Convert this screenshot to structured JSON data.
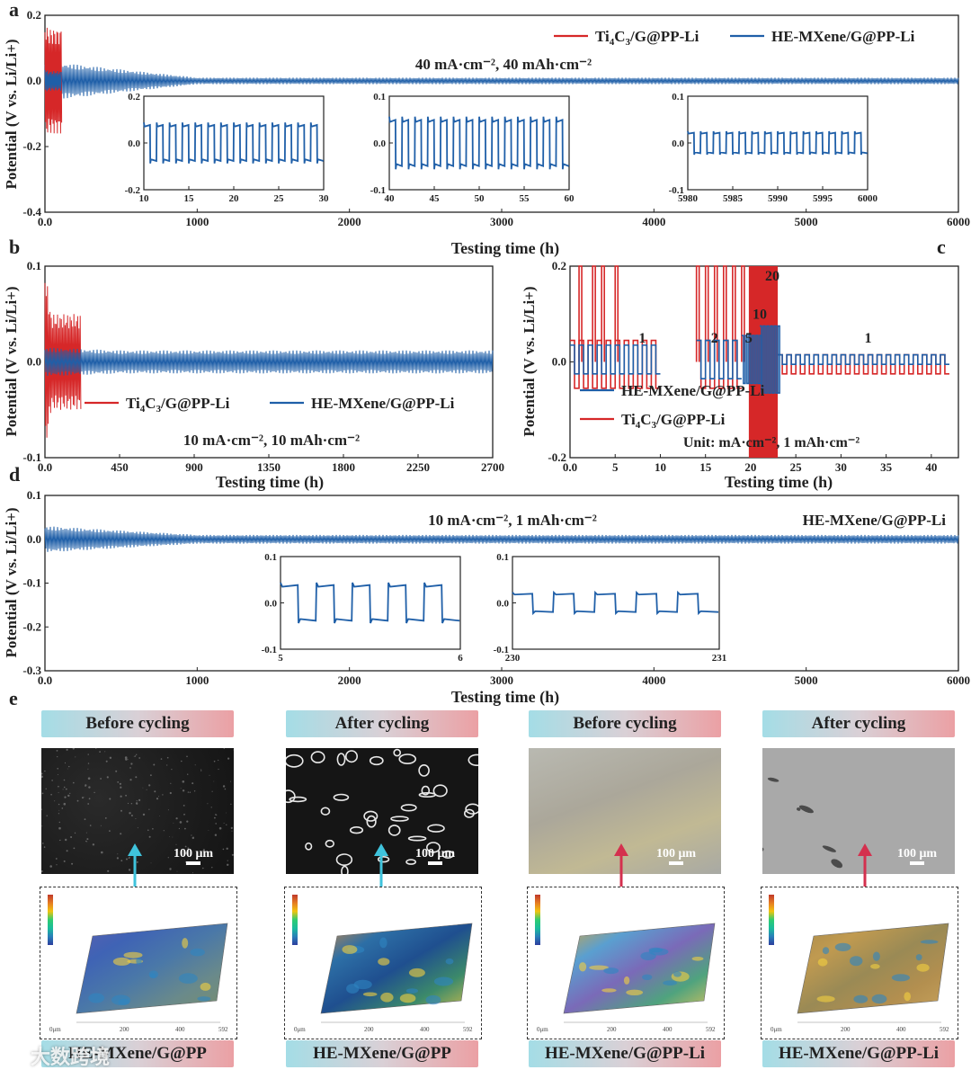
{
  "colors": {
    "ti": "#d62728",
    "he": "#1f5fa8",
    "axis": "#222222"
  },
  "legend": {
    "ti": "Ti4C3/G@PP-Li",
    "he": "HE-MXene/G@PP-Li"
  },
  "panels": {
    "a": "a",
    "b": "b",
    "c": "c",
    "d": "d",
    "e": "e"
  },
  "chart_data": [
    {
      "id": "a",
      "type": "line",
      "ylabel": "Potential (V vs. Li/Li+)",
      "xlabel": "Testing time (h)",
      "xlim": [
        0,
        6000
      ],
      "ylim": [
        -0.4,
        0.2
      ],
      "xticks": [
        0,
        1000,
        2000,
        3000,
        4000,
        5000,
        6000
      ],
      "yticks": [
        -0.4,
        -0.2,
        0.0,
        0.2
      ],
      "annotation": "40 mA·cm⁻², 40 mAh·cm⁻²",
      "series": [
        {
          "name": "Ti4C3/G@PP-Li",
          "x_range": [
            0,
            110
          ],
          "amplitude": [
            0.18,
            0.16
          ]
        },
        {
          "name": "HE-MXene/G@PP-Li",
          "x_range": [
            0,
            6000
          ],
          "amplitude": [
            0.06,
            0.01
          ]
        }
      ],
      "insets": [
        {
          "xlim": [
            10,
            30
          ],
          "ylim": [
            -0.2,
            0.2
          ],
          "xticks": [
            10,
            15,
            20,
            25,
            30
          ],
          "yticks": [
            -0.2,
            0.0,
            0.2
          ],
          "amp": 0.07,
          "cycles": 14
        },
        {
          "xlim": [
            40,
            60
          ],
          "ylim": [
            -0.1,
            0.1
          ],
          "xticks": [
            40,
            45,
            50,
            55,
            60
          ],
          "yticks": [
            -0.1,
            0.0,
            0.1
          ],
          "amp": 0.045,
          "cycles": 14
        },
        {
          "xlim": [
            5980,
            6000
          ],
          "ylim": [
            -0.1,
            0.1
          ],
          "xticks": [
            5980,
            5985,
            5990,
            5995,
            6000
          ],
          "yticks": [
            -0.1,
            0.0,
            0.1
          ],
          "amp": 0.02,
          "cycles": 14
        }
      ]
    },
    {
      "id": "b",
      "type": "line",
      "ylabel": "Potential (V vs. Li/Li+)",
      "xlabel": "Testing time (h)",
      "xlim": [
        0,
        2700
      ],
      "ylim": [
        -0.1,
        0.1
      ],
      "xticks": [
        0,
        450,
        900,
        1350,
        1800,
        2250,
        2700
      ],
      "yticks": [
        -0.1,
        0.0,
        0.1
      ],
      "annotation": "10 mA·cm⁻², 10 mAh·cm⁻²",
      "series": [
        {
          "name": "Ti4C3/G@PP-Li",
          "x_range": [
            0,
            220
          ],
          "amplitude": [
            0.1,
            0.05
          ]
        },
        {
          "name": "HE-MXene/G@PP-Li",
          "x_range": [
            0,
            2700
          ],
          "amplitude": [
            0.015,
            0.012
          ]
        }
      ]
    },
    {
      "id": "c",
      "type": "line",
      "ylabel": "Potential (V vs. Li/Li+)",
      "xlabel": "Testing time (h)",
      "xlim": [
        0,
        43
      ],
      "ylim": [
        -0.2,
        0.2
      ],
      "xticks": [
        0,
        5,
        10,
        15,
        20,
        25,
        30,
        35,
        40
      ],
      "yticks": [
        -0.2,
        0.0,
        0.2
      ],
      "annotation": "Unit: mA·cm⁻², 1 mAh·cm⁻²",
      "rate_labels": [
        {
          "t": "1",
          "x": 8
        },
        {
          "t": "2",
          "x": 16
        },
        {
          "t": "5",
          "x": 19.8
        },
        {
          "t": "10",
          "x": 21
        },
        {
          "t": "20",
          "x": 22.4
        },
        {
          "t": "1",
          "x": 33
        }
      ],
      "series": [
        {
          "name": "HE-MXene/G@PP-Li",
          "segments": [
            {
              "x": [
                0,
                10
              ],
              "amp": 0.03
            },
            {
              "x": [
                14,
                19
              ],
              "amp": 0.04
            },
            {
              "x": [
                19,
                21
              ],
              "amp": 0.05
            },
            {
              "x": [
                21,
                23
              ],
              "amp": 0.07
            },
            {
              "x": [
                23,
                42
              ],
              "amp": 0.01
            }
          ]
        },
        {
          "name": "Ti4C3/G@PP-Li",
          "segments": [
            {
              "x": [
                0,
                10
              ],
              "amp": 0.05,
              "spikes": [
                1,
                2.5,
                3.5,
                5
              ]
            },
            {
              "x": [
                14,
                19
              ],
              "amp": 0.05,
              "spikes": [
                14,
                15,
                16,
                17,
                18,
                19
              ]
            },
            {
              "x": [
                19,
                23
              ],
              "amp": 0.2
            },
            {
              "x": [
                23,
                42
              ],
              "amp": 0.02
            }
          ]
        }
      ]
    },
    {
      "id": "d",
      "type": "line",
      "ylabel": "Potential (V vs. Li/Li+)",
      "xlabel": "Testing time (h)",
      "xlim": [
        0,
        6000
      ],
      "ylim": [
        -0.3,
        0.1
      ],
      "xticks": [
        0,
        1000,
        2000,
        3000,
        4000,
        5000,
        6000
      ],
      "yticks": [
        -0.3,
        -0.2,
        -0.1,
        0.0,
        0.1
      ],
      "annotation": "10 mA·cm⁻², 1 mAh·cm⁻²",
      "label": "HE-MXene/G@PP-Li",
      "series": [
        {
          "name": "HE-MXene/G@PP-Li",
          "x_range": [
            0,
            6000
          ],
          "amplitude": [
            0.03,
            0.01
          ]
        }
      ],
      "insets": [
        {
          "xlim": [
            5,
            6
          ],
          "ylim": [
            -0.1,
            0.1
          ],
          "xticks": [
            5,
            6
          ],
          "yticks": [
            -0.1,
            0.0,
            0.1
          ],
          "amp": 0.035,
          "cycles": 5
        },
        {
          "xlim": [
            230,
            231
          ],
          "ylim": [
            -0.1,
            0.1
          ],
          "xticks": [
            230,
            231
          ],
          "yticks": [
            -0.1,
            0.0,
            0.1
          ],
          "amp": 0.018,
          "cycles": 5
        }
      ]
    }
  ],
  "images": {
    "tags": [
      "Before cycling",
      "After cycling",
      "Before cycling",
      "After cycling"
    ],
    "scale": "100 μm",
    "captions": [
      "HE-MXene/G@PP",
      "HE-MXene/G@PP",
      "HE-MXene/G@PP-Li",
      "HE-MXene/G@PP-Li"
    ],
    "map_axis": [
      "0μm",
      "200",
      "400",
      "592"
    ]
  },
  "watermark": "大数跨境"
}
